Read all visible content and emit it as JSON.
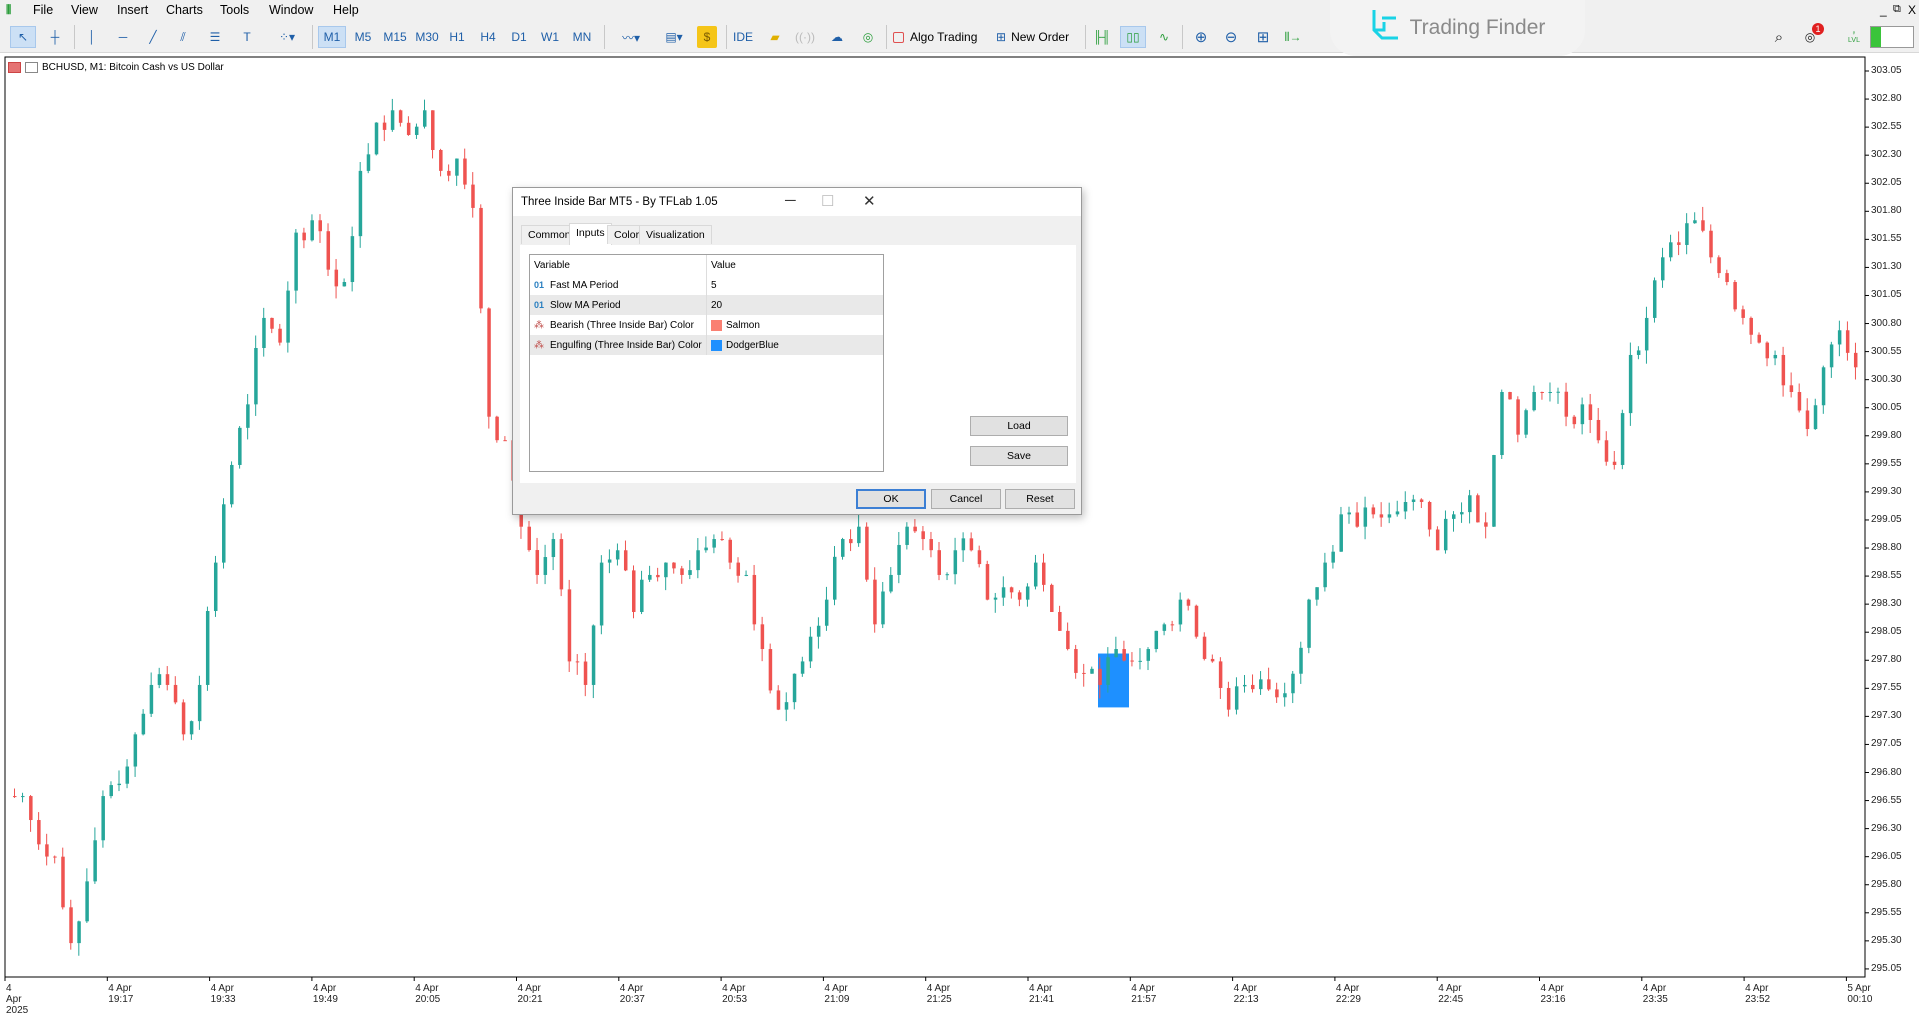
{
  "menu": [
    "File",
    "View",
    "Insert",
    "Charts",
    "Tools",
    "Window",
    "Help"
  ],
  "toolbar": {
    "timeframes": [
      "M1",
      "M5",
      "M15",
      "M30",
      "H1",
      "H4",
      "D1",
      "W1",
      "MN"
    ],
    "selected_timeframe": "M1",
    "ide_label": "IDE",
    "algo_trading_label": "Algo Trading",
    "new_order_label": "New Order",
    "notification_count": "1",
    "lvl_label": "LVL"
  },
  "logo": {
    "text": "Trading Finder"
  },
  "chart": {
    "title": "BCHUSD, M1:  Bitcoin Cash vs US Dollar"
  },
  "chart_data": {
    "type": "candlestick",
    "symbol": "BCHUSD",
    "timeframe": "M1",
    "ylim": [
      295.0,
      303.15
    ],
    "y_ticks": [
      "303.05",
      "302.80",
      "302.55",
      "302.30",
      "302.05",
      "301.80",
      "301.55",
      "301.30",
      "301.05",
      "300.80",
      "300.55",
      "300.30",
      "300.05",
      "299.80",
      "299.55",
      "299.30",
      "299.05",
      "298.80",
      "298.55",
      "298.30",
      "298.05",
      "297.80",
      "297.55",
      "297.30",
      "297.05",
      "296.80",
      "296.55",
      "296.30",
      "296.05",
      "295.80",
      "295.55",
      "295.30",
      "295.05"
    ],
    "x_ticks": [
      "4 Apr 2025",
      "4 Apr 19:17",
      "4 Apr 19:33",
      "4 Apr 19:49",
      "4 Apr 20:05",
      "4 Apr 20:21",
      "4 Apr 20:37",
      "4 Apr 20:53",
      "4 Apr 21:09",
      "4 Apr 21:25",
      "4 Apr 21:41",
      "4 Apr 21:57",
      "4 Apr 22:13",
      "4 Apr 22:29",
      "4 Apr 22:45",
      "4 Apr 23:16",
      "4 Apr 23:35",
      "4 Apr 23:52",
      "5 Apr 00:10"
    ],
    "closes": [
      296.59,
      296.16,
      296.05,
      295.28,
      295.83,
      296.59,
      296.7,
      297.14,
      297.58,
      297.58,
      297.14,
      297.58,
      298.67,
      299.54,
      300.08,
      300.85,
      300.63,
      301.61,
      301.72,
      301.28,
      301.17,
      302.16,
      302.59,
      302.7,
      302.48,
      302.7,
      302.16,
      302.27,
      301.83,
      299.97,
      299.76,
      298.99,
      298.56,
      298.88,
      297.79,
      297.58,
      298.67,
      298.78,
      298.23,
      298.56,
      298.67,
      298.56,
      298.78,
      298.88,
      298.67,
      298.56,
      297.9,
      297.36,
      297.68,
      298.01,
      298.34,
      298.88,
      298.99,
      298.12,
      298.56,
      298.99,
      298.88,
      298.56,
      298.78,
      298.78,
      298.34,
      298.45,
      298.34,
      298.67,
      298.23,
      297.9,
      297.68,
      297.58,
      297.9,
      297.79,
      297.9,
      298.12,
      298.34,
      298.01,
      297.79,
      297.36,
      297.58,
      297.63,
      297.47,
      297.68,
      298.34,
      298.67,
      299.1,
      298.99,
      299.1,
      299.1,
      299.21,
      299.21,
      298.78,
      299.1,
      299.27,
      298.99,
      300.19,
      299.81,
      300.19,
      300.19,
      299.97,
      300.08,
      299.76,
      299.54,
      300.52,
      300.85,
      301.39,
      301.5,
      301.72,
      301.39,
      301.17,
      300.85,
      300.63,
      300.52,
      300.19,
      299.86,
      300.41,
      300.74,
      300.41
    ],
    "highlight": {
      "price_high": 297.86,
      "price_low": 297.38,
      "color": "#1E90FF"
    },
    "bull_color": "#26a69a",
    "bear_color": "#ef5350"
  },
  "dialog": {
    "title": "Three Inside Bar MT5 - By TFLab 1.05",
    "tabs": [
      "Common",
      "Inputs",
      "Colors",
      "Visualization"
    ],
    "active_tab": "Inputs",
    "columns": [
      "Variable",
      "Value"
    ],
    "rows": [
      {
        "icon": "integer-icon",
        "variable": "Fast MA Period",
        "value": "5"
      },
      {
        "icon": "integer-icon",
        "variable": "Slow MA Period",
        "value": "20"
      },
      {
        "icon": "color-icon",
        "variable": "Bearish (Three Inside Bar) Color",
        "value": "Salmon",
        "swatch": "#FA8072"
      },
      {
        "icon": "color-icon",
        "variable": "Engulfing (Three Inside Bar) Color",
        "value": "DodgerBlue",
        "swatch": "#1E90FF"
      }
    ],
    "buttons": {
      "load": "Load",
      "save": "Save",
      "ok": "OK",
      "cancel": "Cancel",
      "reset": "Reset"
    }
  }
}
